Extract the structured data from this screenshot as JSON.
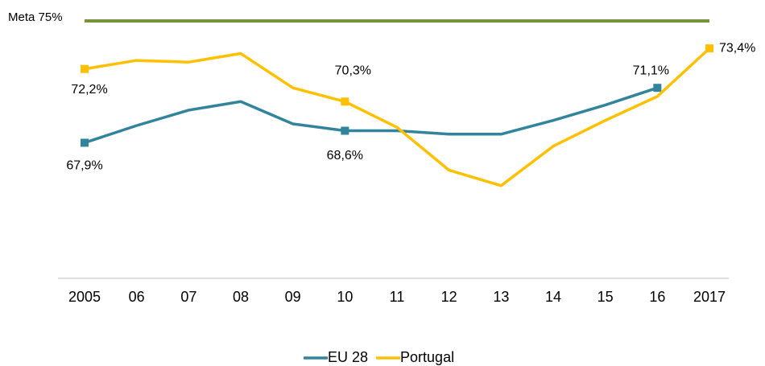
{
  "chart_data": {
    "type": "line",
    "categories": [
      "2005",
      "06",
      "07",
      "08",
      "09",
      "10",
      "11",
      "12",
      "13",
      "14",
      "15",
      "16",
      "2017"
    ],
    "series": [
      {
        "name": "EU 28",
        "color": "#31849b",
        "values": [
          67.9,
          68.9,
          69.8,
          70.3,
          69.0,
          68.6,
          68.6,
          68.4,
          68.4,
          69.2,
          70.1,
          71.1,
          null
        ],
        "value_labels": [
          "67,9%",
          null,
          null,
          null,
          null,
          "68,6%",
          null,
          null,
          null,
          null,
          null,
          "71,1%",
          null
        ]
      },
      {
        "name": "Portugal",
        "color": "#ffc000",
        "values": [
          72.2,
          72.7,
          72.6,
          73.1,
          71.1,
          70.3,
          68.8,
          66.3,
          65.4,
          67.7,
          69.2,
          70.6,
          73.4
        ],
        "value_labels": [
          "72,2%",
          null,
          null,
          null,
          null,
          "70,3%",
          null,
          null,
          null,
          null,
          null,
          null,
          "73,4%"
        ]
      }
    ],
    "target": {
      "label": "Meta 75%",
      "value": 75,
      "color": "#77933c"
    },
    "ylim": [
      60,
      75
    ],
    "legend": "bottom"
  }
}
